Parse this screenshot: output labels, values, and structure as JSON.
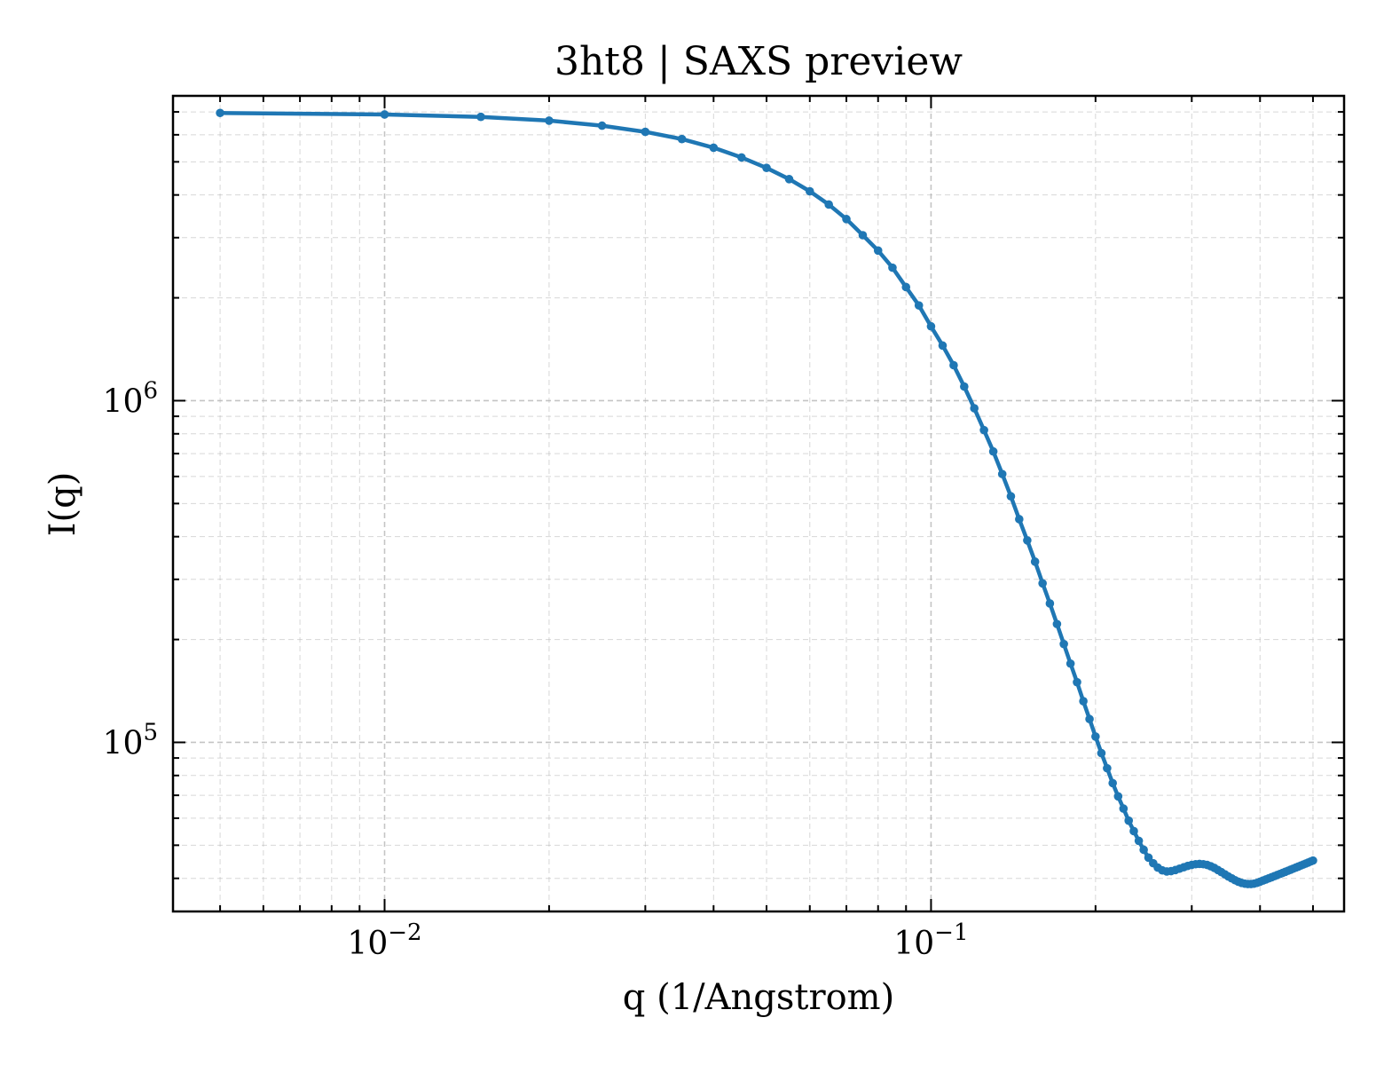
{
  "chart_data": {
    "type": "line",
    "title": "3ht8 | SAXS preview",
    "xlabel": "q (1/Angstrom)",
    "ylabel": "I(q)",
    "xscale": "log",
    "yscale": "log",
    "xlim": [
      0.0041,
      0.57
    ],
    "ylim": [
      32000,
      7800000
    ],
    "grid": true,
    "legend": "none",
    "x_ticks": [
      {
        "value": 0.01,
        "base": "10",
        "exp": "−2"
      },
      {
        "value": 0.1,
        "base": "10",
        "exp": "−1"
      }
    ],
    "y_ticks": [
      {
        "value": 100000,
        "base": "10",
        "exp": "5"
      },
      {
        "value": 1000000,
        "base": "10",
        "exp": "6"
      }
    ],
    "series": [
      {
        "color": "#1f77b4",
        "x": [
          0.005,
          0.01,
          0.015,
          0.02,
          0.025,
          0.03,
          0.035,
          0.04,
          0.045,
          0.05,
          0.055,
          0.06,
          0.065,
          0.07,
          0.075,
          0.08,
          0.085,
          0.09,
          0.095,
          0.1,
          0.105,
          0.11,
          0.115,
          0.12,
          0.125,
          0.13,
          0.135,
          0.14,
          0.145,
          0.15,
          0.155,
          0.16,
          0.165,
          0.17,
          0.175,
          0.18,
          0.185,
          0.19,
          0.195,
          0.2,
          0.205,
          0.21,
          0.215,
          0.22,
          0.225,
          0.23,
          0.235,
          0.24,
          0.245,
          0.25,
          0.255,
          0.26,
          0.265,
          0.27,
          0.275,
          0.28,
          0.285,
          0.29,
          0.295,
          0.3,
          0.305,
          0.31,
          0.315,
          0.32,
          0.325,
          0.33,
          0.335,
          0.34,
          0.345,
          0.35,
          0.355,
          0.36,
          0.365,
          0.37,
          0.375,
          0.38,
          0.385,
          0.39,
          0.395,
          0.4,
          0.405,
          0.41,
          0.415,
          0.42,
          0.425,
          0.43,
          0.435,
          0.44,
          0.445,
          0.45,
          0.455,
          0.46,
          0.465,
          0.47,
          0.475,
          0.48,
          0.485,
          0.49,
          0.495,
          0.5
        ],
        "y": [
          6950000,
          6880000,
          6770000,
          6600000,
          6380000,
          6120000,
          5830000,
          5500000,
          5150000,
          4800000,
          4450000,
          4100000,
          3750000,
          3400000,
          3050000,
          2750000,
          2450000,
          2150000,
          1900000,
          1650000,
          1450000,
          1270000,
          1100000,
          950000,
          820000,
          710000,
          610000,
          525000,
          450000,
          390000,
          338000,
          292000,
          255000,
          222000,
          194000,
          170000,
          150000,
          132000,
          117000,
          104000,
          93000,
          84000,
          76000,
          69500,
          64000,
          59000,
          55000,
          51500,
          48500,
          46000,
          44300,
          43000,
          42200,
          41900,
          42000,
          42300,
          42700,
          43100,
          43500,
          43800,
          44000,
          44100,
          44000,
          43800,
          43400,
          42900,
          42300,
          41700,
          41100,
          40500,
          40000,
          39500,
          39100,
          38800,
          38600,
          38500,
          38500,
          38600,
          38800,
          39100,
          39400,
          39700,
          40000,
          40300,
          40600,
          40900,
          41200,
          41500,
          41800,
          42100,
          42400,
          42700,
          43000,
          43300,
          43600,
          43900,
          44200,
          44500,
          44800,
          45100
        ]
      }
    ]
  }
}
